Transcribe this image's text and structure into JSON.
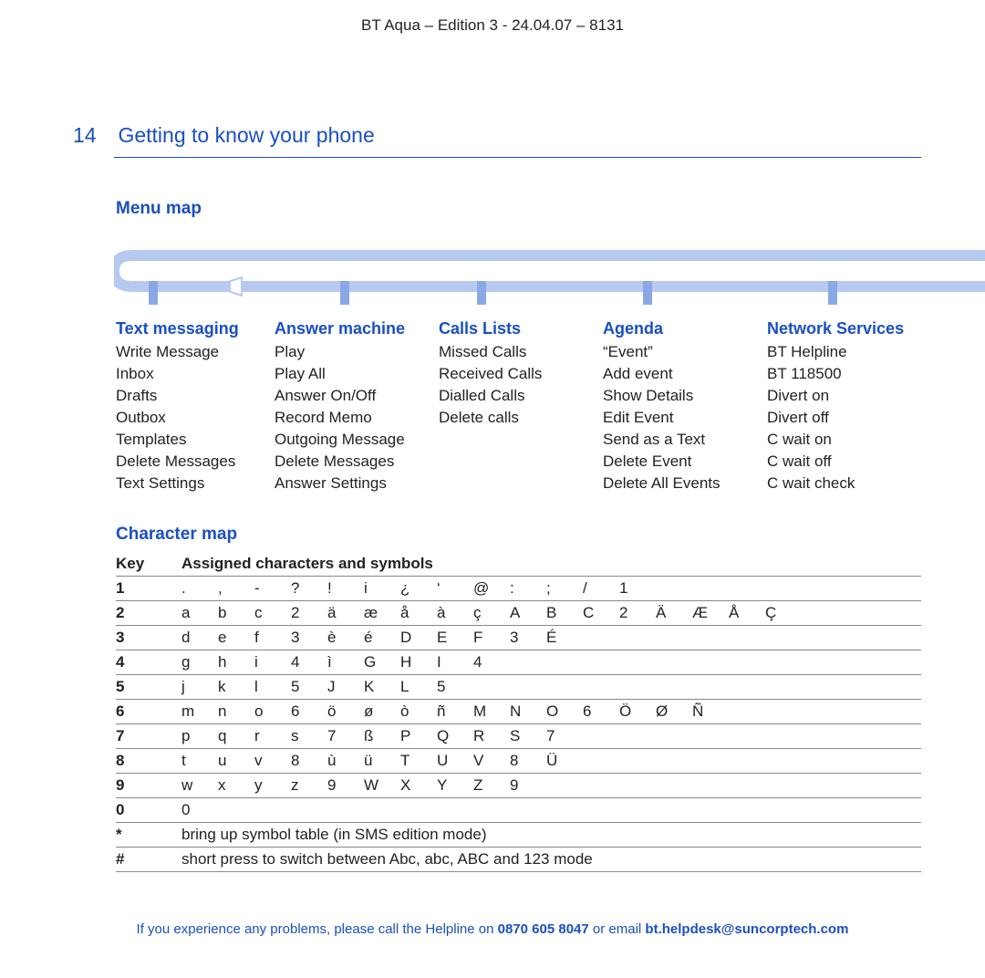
{
  "header": "BT Aqua – Edition 3 -  24.04.07 – 8131",
  "page_number": "14",
  "page_title": "Getting to know your phone",
  "colors": {
    "accent": "#1a4fc3",
    "timeline_light": "#b7c9f0",
    "timeline_tick": "#8aa8e6",
    "rule": "#888888",
    "text": "#222222",
    "background": "#ffffff"
  },
  "menu_map": {
    "heading": "Menu map",
    "columns": [
      {
        "title": "Text messaging",
        "items": [
          "Write Message",
          "Inbox",
          "Drafts",
          "Outbox",
          "Templates",
          "Delete Messages",
          "Text Settings"
        ]
      },
      {
        "title": "Answer machine",
        "items": [
          "Play",
          "Play All",
          "Answer On/Off",
          "Record Memo",
          "Outgoing Message",
          "Delete Messages",
          "Answer Settings"
        ]
      },
      {
        "title": "Calls Lists",
        "items": [
          "Missed Calls",
          "Received Calls",
          "Dialled Calls",
          "Delete calls"
        ]
      },
      {
        "title": "Agenda",
        "items": [
          "“Event”",
          "Add event",
          "Show Details",
          "Edit Event",
          "Send as a Text",
          "Delete Event",
          "Delete All Events"
        ]
      },
      {
        "title": "Network Services",
        "items": [
          "BT Helpline",
          "BT 118500",
          "Divert on",
          "Divert off",
          "C wait on",
          "C wait off",
          "C wait check"
        ]
      }
    ]
  },
  "char_map": {
    "heading": "Character map",
    "key_header": "Key",
    "assigned_header": "Assigned characters and symbols",
    "rows": [
      {
        "key": "1",
        "chars": [
          ".",
          ",",
          "-",
          "?",
          "!",
          "i",
          "¿",
          "‘",
          "@",
          ":",
          ";",
          "/",
          "1"
        ]
      },
      {
        "key": "2",
        "chars": [
          "a",
          "b",
          "c",
          "2",
          "ä",
          "æ",
          "å",
          "à",
          "ç",
          "A",
          "B",
          "C",
          "2",
          "Ä",
          "Æ",
          "Å",
          "Ç"
        ]
      },
      {
        "key": "3",
        "chars": [
          "d",
          "e",
          "f",
          "3",
          "è",
          "é",
          "D",
          "E",
          "F",
          "3",
          "É"
        ]
      },
      {
        "key": "4",
        "chars": [
          "g",
          "h",
          "i",
          "4",
          "ì",
          "G",
          "H",
          "I",
          "4"
        ]
      },
      {
        "key": "5",
        "chars": [
          "j",
          "k",
          "l",
          "5",
          "J",
          "K",
          "L",
          "5"
        ]
      },
      {
        "key": "6",
        "chars": [
          "m",
          "n",
          "o",
          "6",
          "ö",
          "ø",
          "ò",
          "ñ",
          "M",
          "N",
          "O",
          "6",
          "Ö",
          "Ø",
          "Ñ"
        ]
      },
      {
        "key": "7",
        "chars": [
          "p",
          "q",
          "r",
          "s",
          "7",
          "ß",
          "P",
          "Q",
          "R",
          "S",
          "7"
        ]
      },
      {
        "key": "8",
        "chars": [
          "t",
          "u",
          "v",
          "8",
          "ù",
          "ü",
          "T",
          "U",
          "V",
          "8",
          "Ü"
        ]
      },
      {
        "key": "9",
        "chars": [
          "w",
          "x",
          "y",
          "z",
          "9",
          "W",
          "X",
          "Y",
          "Z",
          "9"
        ]
      },
      {
        "key": "0",
        "chars": [
          "0"
        ]
      },
      {
        "key": "*",
        "text": "bring up symbol table (in SMS edition mode)"
      },
      {
        "key": "#",
        "text": "short press to switch between Abc, abc, ABC and 123 mode"
      }
    ]
  },
  "footer": {
    "pre": "If you experience any problems, please call the Helpline on ",
    "phone": "0870 605 8047",
    "mid": " or email ",
    "email": "bt.helpdesk@suncorptech.com"
  }
}
